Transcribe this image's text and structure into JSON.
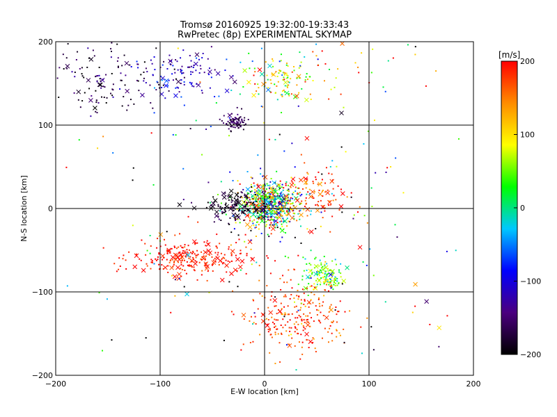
{
  "title": "Tromsø 20160925 19:32:00-19:33:43",
  "subtitle": "RwPretec (8p) EXPERIMENTAL SKYMAP",
  "chart_data": {
    "type": "scatter",
    "title": "Tromsø 20160925 19:32:00-19:33:43",
    "subtitle": "RwPretec (8p) EXPERIMENTAL SKYMAP",
    "xlabel": "E-W location [km]",
    "ylabel": "N-S location [km]",
    "xlim": [
      -200,
      200
    ],
    "ylim": [
      -200,
      200
    ],
    "xticks": [
      -200,
      -100,
      0,
      100,
      200
    ],
    "yticks": [
      -200,
      -100,
      0,
      100,
      200
    ],
    "grid_lines": [
      -100,
      0,
      100
    ],
    "colorbar": {
      "unit": "[m/s]",
      "range": [
        -200,
        200
      ],
      "ticks": [
        200,
        100,
        0,
        -100,
        -200
      ],
      "colormap": [
        "#000000",
        "#4b007f",
        "#0000ff",
        "#00c8ff",
        "#00ff00",
        "#ffff00",
        "#ff8c00",
        "#ff0000"
      ]
    },
    "clusters": [
      {
        "name": "central",
        "cx": 5,
        "cy": 5,
        "sx": 14,
        "sy": 14,
        "n_dot": 520,
        "n_cross": 80,
        "v_mean": 20,
        "v_sd": 110
      },
      {
        "name": "central-west-dark",
        "cx": -25,
        "cy": 3,
        "sx": 15,
        "sy": 10,
        "n_dot": 110,
        "n_cross": 28,
        "v_mean": -185,
        "v_sd": 20
      },
      {
        "name": "central-east",
        "cx": 45,
        "cy": 15,
        "sx": 17,
        "sy": 18,
        "n_dot": 90,
        "n_cross": 20,
        "v_mean": 180,
        "v_sd": 40
      },
      {
        "name": "southwest-red",
        "cx": -70,
        "cy": -60,
        "sx": 28,
        "sy": 10,
        "n_dot": 200,
        "n_cross": 45,
        "v_mean": 190,
        "v_sd": 20
      },
      {
        "name": "southeast-green",
        "cx": 58,
        "cy": -80,
        "sx": 10,
        "sy": 10,
        "n_dot": 120,
        "n_cross": 14,
        "v_mean": 45,
        "v_sd": 40
      },
      {
        "name": "south-red",
        "cx": 30,
        "cy": -130,
        "sx": 25,
        "sy": 20,
        "n_dot": 230,
        "n_cross": 14,
        "v_mean": 175,
        "v_sd": 30
      },
      {
        "name": "north-purple",
        "cx": -28,
        "cy": 103,
        "sx": 5,
        "sy": 5,
        "n_dot": 80,
        "n_cross": 2,
        "v_mean": -160,
        "v_sd": 15
      },
      {
        "name": "northwest-dark",
        "cx": -150,
        "cy": 160,
        "sx": 32,
        "sy": 22,
        "n_dot": 110,
        "n_cross": 12,
        "v_mean": -170,
        "v_sd": 30
      },
      {
        "name": "northwest-blue",
        "cx": -80,
        "cy": 160,
        "sx": 20,
        "sy": 14,
        "n_dot": 90,
        "n_cross": 14,
        "v_mean": -110,
        "v_sd": 30
      },
      {
        "name": "north-yellow",
        "cx": 15,
        "cy": 155,
        "sx": 15,
        "sy": 14,
        "n_dot": 90,
        "n_cross": 10,
        "v_mean": 80,
        "v_sd": 50
      },
      {
        "name": "north-sparse",
        "cx": 40,
        "cy": 170,
        "sx": 50,
        "sy": 20,
        "n_dot": 40,
        "n_cross": 5,
        "v_mean": 80,
        "v_sd": 100
      },
      {
        "name": "background",
        "cx": 0,
        "cy": 0,
        "sx": 110,
        "sy": 110,
        "n_dot": 180,
        "n_cross": 12,
        "v_mean": 0,
        "v_sd": 160
      }
    ]
  }
}
